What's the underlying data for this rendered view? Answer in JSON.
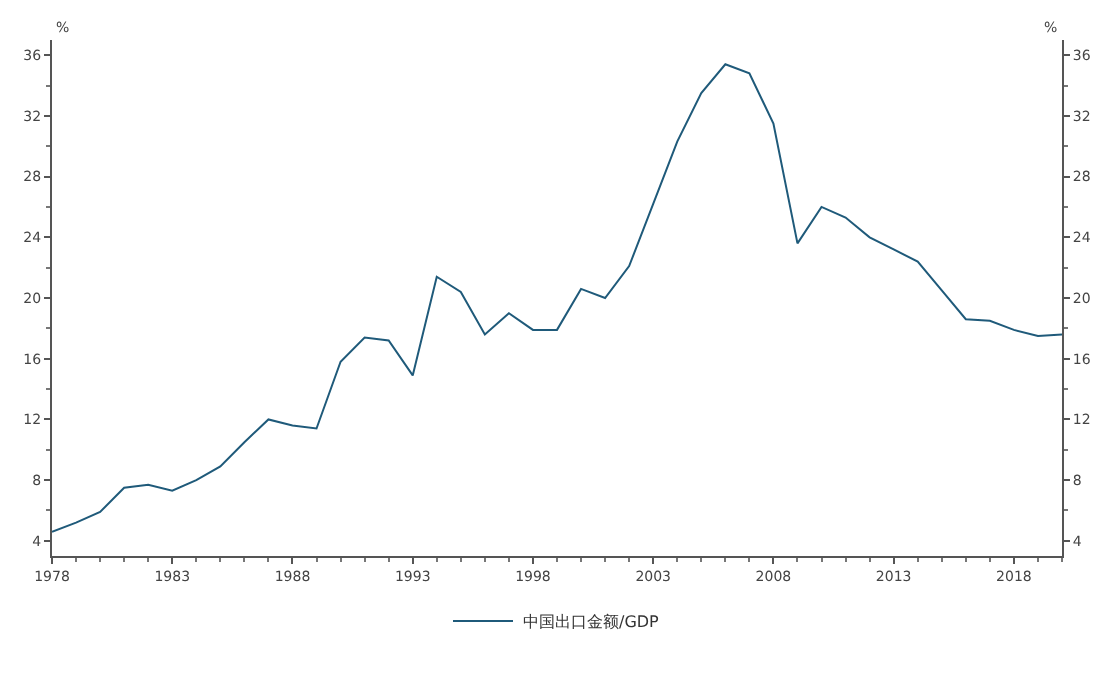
{
  "chart_data": {
    "type": "line",
    "x": [
      1978,
      1979,
      1980,
      1981,
      1982,
      1983,
      1984,
      1985,
      1986,
      1987,
      1988,
      1989,
      1990,
      1991,
      1992,
      1993,
      1994,
      1995,
      1996,
      1997,
      1998,
      1999,
      2000,
      2001,
      2002,
      2003,
      2004,
      2005,
      2006,
      2007,
      2008,
      2009,
      2010,
      2011,
      2012,
      2013,
      2014,
      2015,
      2016,
      2017,
      2018,
      2019,
      2020
    ],
    "series": [
      {
        "name": "中国出口金额/GDP",
        "color": "#1f5a7a",
        "values": [
          4.6,
          5.2,
          5.9,
          7.5,
          7.7,
          7.3,
          8.0,
          8.9,
          10.5,
          12.0,
          11.6,
          11.4,
          15.8,
          17.4,
          17.2,
          14.9,
          21.4,
          20.4,
          17.6,
          19.0,
          17.9,
          17.9,
          20.6,
          20.0,
          22.1,
          26.2,
          30.3,
          33.5,
          35.4,
          34.8,
          31.5,
          23.6,
          26.0,
          25.3,
          24.0,
          23.2,
          22.4,
          20.5,
          18.6,
          18.5,
          17.9,
          17.5,
          17.6
        ]
      }
    ],
    "ylabel": "%",
    "y2label": "%",
    "xlim": [
      1978,
      2020
    ],
    "xticks": [
      1978,
      1983,
      1988,
      1993,
      1998,
      2003,
      2008,
      2013,
      2018
    ],
    "ylim": [
      3,
      37
    ],
    "yticks": [
      4,
      8,
      12,
      16,
      20,
      24,
      28,
      32,
      36
    ],
    "y2lim": [
      3,
      37
    ],
    "y2ticks": [
      4,
      8,
      12,
      16,
      20,
      24,
      28,
      32,
      36
    ],
    "legend": "bottom",
    "marker": "none",
    "line_style": "solid"
  }
}
